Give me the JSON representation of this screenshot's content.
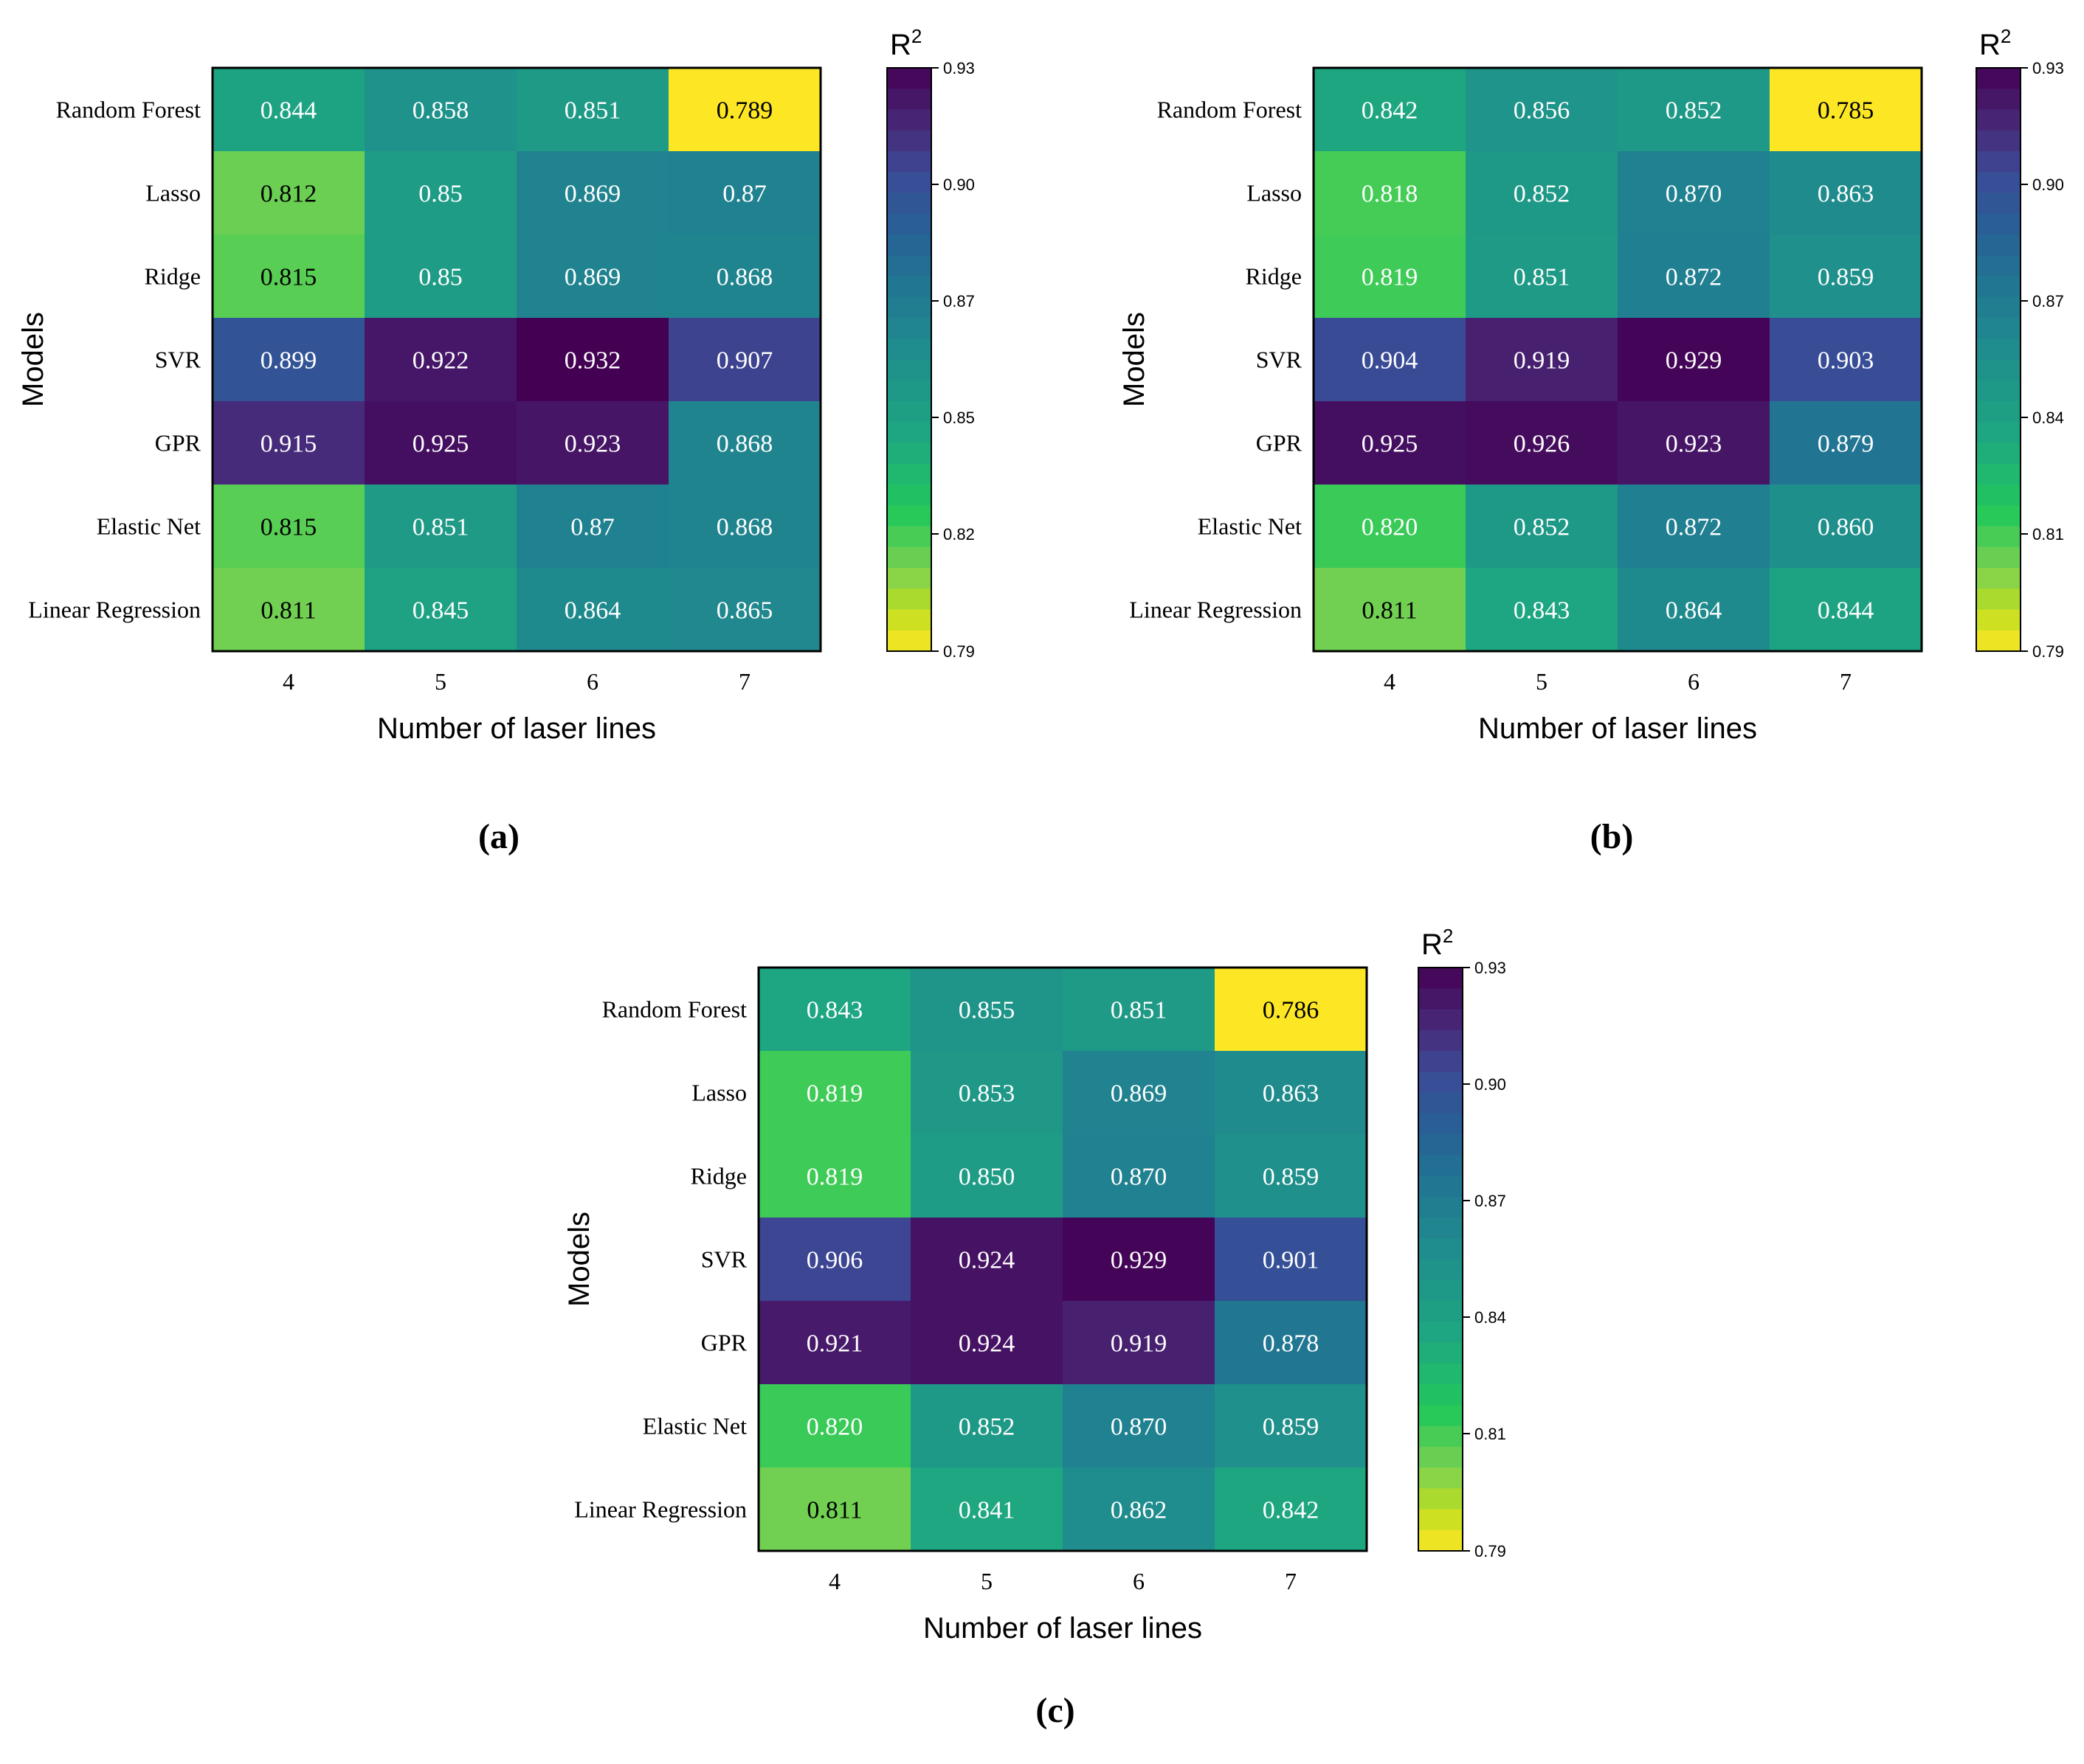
{
  "figure": {
    "colorbar_title_main": "R",
    "colorbar_title_sup": "2",
    "colorbar_ticks": [
      "0.93",
      "0.90",
      "0.87",
      "0.85",
      "0.82",
      "0.79"
    ],
    "colorbar_ticks_b": [
      "0.93",
      "0.90",
      "0.87",
      "0.84",
      "0.81",
      "0.79"
    ],
    "colorbar_ticks_c": [
      "0.93",
      "0.90",
      "0.87",
      "0.84",
      "0.81",
      "0.79"
    ]
  },
  "chart_data": [
    {
      "type": "heatmap",
      "panel_label": "(a)",
      "xlabel": "Number of laser lines",
      "ylabel": "Models",
      "x_categories": [
        "4",
        "5",
        "6",
        "7"
      ],
      "y_categories": [
        "Random Forest",
        "Lasso",
        "Ridge",
        "SVR",
        "GPR",
        "Elastic Net",
        "Linear Regression"
      ],
      "values": [
        [
          "0.844",
          "0.858",
          "0.851",
          "0.789"
        ],
        [
          "0.812",
          "0.85",
          "0.869",
          "0.87"
        ],
        [
          "0.815",
          "0.85",
          "0.869",
          "0.868"
        ],
        [
          "0.899",
          "0.922",
          "0.932",
          "0.907"
        ],
        [
          "0.915",
          "0.925",
          "0.923",
          "0.868"
        ],
        [
          "0.815",
          "0.851",
          "0.87",
          "0.868"
        ],
        [
          "0.811",
          "0.845",
          "0.864",
          "0.865"
        ]
      ],
      "colorbar_range": [
        0.79,
        0.93
      ],
      "colorbar_title": "R2"
    },
    {
      "type": "heatmap",
      "panel_label": "(b)",
      "xlabel": "Number of laser lines",
      "ylabel": "Models",
      "x_categories": [
        "4",
        "5",
        "6",
        "7"
      ],
      "y_categories": [
        "Random Forest",
        "Lasso",
        "Ridge",
        "SVR",
        "GPR",
        "Elastic Net",
        "Linear Regression"
      ],
      "values": [
        [
          "0.842",
          "0.856",
          "0.852",
          "0.785"
        ],
        [
          "0.818",
          "0.852",
          "0.870",
          "0.863"
        ],
        [
          "0.819",
          "0.851",
          "0.872",
          "0.859"
        ],
        [
          "0.904",
          "0.919",
          "0.929",
          "0.903"
        ],
        [
          "0.925",
          "0.926",
          "0.923",
          "0.879"
        ],
        [
          "0.820",
          "0.852",
          "0.872",
          "0.860"
        ],
        [
          "0.811",
          "0.843",
          "0.864",
          "0.844"
        ]
      ],
      "colorbar_range": [
        0.79,
        0.93
      ],
      "colorbar_title": "R2"
    },
    {
      "type": "heatmap",
      "panel_label": "(c)",
      "xlabel": "Number of laser lines",
      "ylabel": "Models",
      "x_categories": [
        "4",
        "5",
        "6",
        "7"
      ],
      "y_categories": [
        "Random Forest",
        "Lasso",
        "Ridge",
        "SVR",
        "GPR",
        "Elastic Net",
        "Linear Regression"
      ],
      "values": [
        [
          "0.843",
          "0.855",
          "0.851",
          "0.786"
        ],
        [
          "0.819",
          "0.853",
          "0.869",
          "0.863"
        ],
        [
          "0.819",
          "0.850",
          "0.870",
          "0.859"
        ],
        [
          "0.906",
          "0.924",
          "0.929",
          "0.901"
        ],
        [
          "0.921",
          "0.924",
          "0.919",
          "0.878"
        ],
        [
          "0.820",
          "0.852",
          "0.870",
          "0.859"
        ],
        [
          "0.811",
          "0.841",
          "0.862",
          "0.842"
        ]
      ],
      "colorbar_range": [
        0.79,
        0.93
      ],
      "colorbar_title": "R2"
    }
  ]
}
